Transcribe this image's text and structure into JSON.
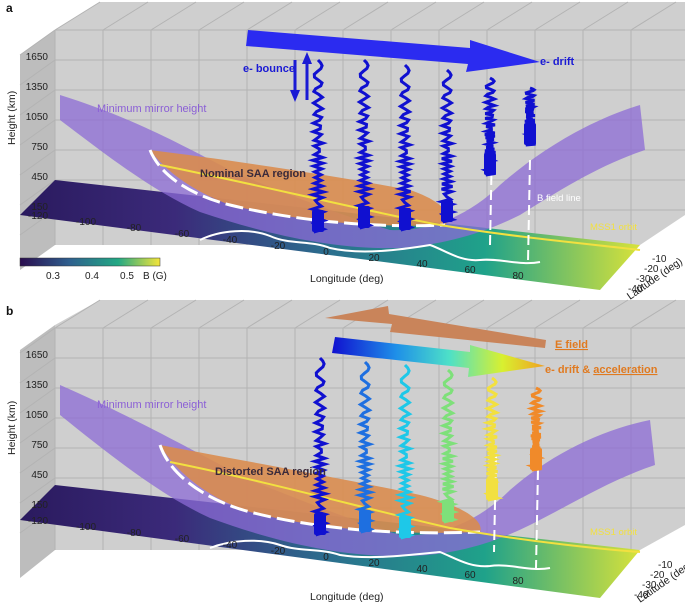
{
  "colors": {
    "panel_wall": "#c9c9c9",
    "panel_grid": "#b0b0b0",
    "mirror_surface": "#8c6bd6",
    "saa_region": "#d98c4f",
    "orbit": "#f2e040",
    "bfield": "#ffffff",
    "electron_blue": "#1010d0",
    "drift_arrow": "#2b2bf0",
    "efield_arrow": "#c9845a",
    "label_purple": "#8b5fd6",
    "label_blue": "#1a1ad4",
    "label_orange": "#e07a20"
  },
  "panels": [
    {
      "id": "a",
      "panel_label": "a",
      "y_axis_label": "Height (km)",
      "y_ticks": [
        "1650",
        "1350",
        "1050",
        "750",
        "450",
        "150"
      ],
      "lon_ticks": [
        "-120",
        "-100",
        "-80",
        "-60",
        "-40",
        "-20",
        "0",
        "20",
        "40",
        "60",
        "80"
      ],
      "lon_label": "Longitude (deg)",
      "lat_ticks": [
        "-10",
        "-20",
        "-30",
        "-40"
      ],
      "lat_label": "Latitude (deg)",
      "mirror_label": "Minimum mirror height",
      "saa_label": "Nominal SAA region",
      "bounce_label": "e- bounce",
      "drift_label": "e- drift",
      "bfield_label": "B field line",
      "orbit_label": "MSS1 orbit",
      "colorbar_ticks": [
        "0.3",
        "0.4",
        "0.5"
      ],
      "colorbar_label": "B (G)",
      "electron_colors": [
        "#1010d0",
        "#1010d0",
        "#1010d0",
        "#1010d0",
        "#1010d0",
        "#1010d0"
      ]
    },
    {
      "id": "b",
      "panel_label": "b",
      "y_axis_label": "Height (km)",
      "y_ticks": [
        "1650",
        "1350",
        "1050",
        "750",
        "450",
        "150"
      ],
      "lon_ticks": [
        "-120",
        "-100",
        "-80",
        "-60",
        "-40",
        "-20",
        "0",
        "20",
        "40",
        "60",
        "80"
      ],
      "lon_label": "Longitude (deg)",
      "lat_ticks": [
        "-10",
        "-20",
        "-30",
        "-40"
      ],
      "lat_label": "Latitude (deg)",
      "mirror_label": "Minimum mirror height",
      "saa_label": "Distorted SAA region",
      "efield_label": "E field",
      "drift_accel_label_1": "e- drift & ",
      "drift_accel_label_2": "acceleration",
      "orbit_label": "MSS1 orbit",
      "electron_colors": [
        "#1010d0",
        "#1e6fe0",
        "#1ec8e8",
        "#7ee07a",
        "#f2e040",
        "#f08a2a"
      ]
    }
  ]
}
